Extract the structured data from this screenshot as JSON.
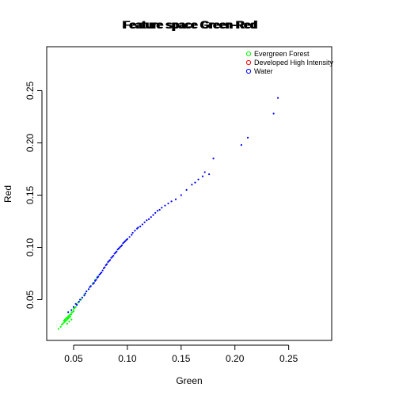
{
  "chart_data": {
    "type": "scatter",
    "title_overlaps": [
      "Feature space Green-Red",
      "Feature space Green-Red",
      "Feature space Green-Red"
    ],
    "xlabel": "Green",
    "ylabel": "Red",
    "xlim": [
      0.025,
      0.29
    ],
    "ylim": [
      0.011,
      0.292
    ],
    "x_ticks": [
      0.05,
      0.1,
      0.15,
      0.2,
      0.25
    ],
    "x_tick_labels": [
      "0.05",
      "0.10",
      "0.15",
      "0.20",
      "0.25"
    ],
    "y_ticks": [
      0.05,
      0.1,
      0.15,
      0.2,
      0.25
    ],
    "y_tick_labels": [
      "0.05",
      "0.10",
      "0.15",
      "0.20",
      "0.25"
    ],
    "legend": {
      "position": "top-right",
      "entries": [
        {
          "label": "Evergreen Forest",
          "color": "#00ff00"
        },
        {
          "label": "Developed High Intensity",
          "color": "#ff0000"
        },
        {
          "label": "Water",
          "color": "#0000ff"
        }
      ]
    },
    "series": [
      {
        "name": "Evergreen Forest",
        "color": "#00ff00",
        "x": [
          0.036,
          0.038,
          0.039,
          0.04,
          0.041,
          0.041,
          0.042,
          0.042,
          0.043,
          0.043,
          0.044,
          0.044,
          0.045,
          0.045,
          0.046,
          0.046,
          0.047,
          0.047,
          0.048,
          0.048,
          0.049,
          0.05,
          0.05,
          0.051,
          0.052,
          0.053,
          0.054,
          0.055,
          0.057,
          0.058,
          0.06,
          0.062,
          0.064,
          0.066,
          0.068,
          0.07,
          0.072,
          0.044,
          0.046,
          0.048
        ],
        "y": [
          0.022,
          0.024,
          0.026,
          0.027,
          0.028,
          0.03,
          0.029,
          0.031,
          0.03,
          0.032,
          0.031,
          0.033,
          0.032,
          0.034,
          0.033,
          0.035,
          0.034,
          0.036,
          0.036,
          0.038,
          0.038,
          0.039,
          0.041,
          0.042,
          0.043,
          0.045,
          0.047,
          0.048,
          0.05,
          0.052,
          0.055,
          0.058,
          0.06,
          0.063,
          0.066,
          0.069,
          0.072,
          0.027,
          0.029,
          0.031
        ]
      },
      {
        "name": "Water",
        "color": "#0000ff",
        "x": [
          0.045,
          0.048,
          0.05,
          0.052,
          0.053,
          0.055,
          0.056,
          0.058,
          0.06,
          0.061,
          0.062,
          0.064,
          0.065,
          0.066,
          0.068,
          0.069,
          0.07,
          0.071,
          0.072,
          0.073,
          0.074,
          0.075,
          0.076,
          0.077,
          0.078,
          0.079,
          0.08,
          0.081,
          0.082,
          0.083,
          0.084,
          0.085,
          0.086,
          0.087,
          0.088,
          0.089,
          0.09,
          0.091,
          0.092,
          0.093,
          0.094,
          0.095,
          0.096,
          0.097,
          0.098,
          0.099,
          0.1,
          0.102,
          0.104,
          0.105,
          0.107,
          0.109,
          0.11,
          0.112,
          0.114,
          0.116,
          0.118,
          0.12,
          0.122,
          0.124,
          0.126,
          0.128,
          0.13,
          0.132,
          0.135,
          0.138,
          0.141,
          0.145,
          0.15,
          0.155,
          0.16,
          0.163,
          0.166,
          0.17,
          0.172,
          0.176,
          0.18,
          0.206,
          0.212,
          0.236,
          0.24
        ],
        "y": [
          0.038,
          0.04,
          0.043,
          0.046,
          0.045,
          0.048,
          0.05,
          0.052,
          0.054,
          0.056,
          0.058,
          0.06,
          0.062,
          0.063,
          0.065,
          0.066,
          0.068,
          0.069,
          0.071,
          0.072,
          0.074,
          0.075,
          0.076,
          0.078,
          0.08,
          0.081,
          0.083,
          0.084,
          0.086,
          0.087,
          0.088,
          0.09,
          0.091,
          0.092,
          0.094,
          0.095,
          0.096,
          0.098,
          0.099,
          0.1,
          0.101,
          0.102,
          0.104,
          0.105,
          0.106,
          0.107,
          0.108,
          0.11,
          0.112,
          0.114,
          0.116,
          0.118,
          0.119,
          0.12,
          0.122,
          0.124,
          0.126,
          0.127,
          0.129,
          0.131,
          0.133,
          0.135,
          0.136,
          0.138,
          0.14,
          0.142,
          0.144,
          0.146,
          0.15,
          0.155,
          0.16,
          0.162,
          0.165,
          0.168,
          0.172,
          0.17,
          0.185,
          0.198,
          0.205,
          0.228,
          0.243
        ]
      },
      {
        "name": "Developed High Intensity",
        "color": "#ff0000",
        "x": [],
        "y": []
      }
    ]
  }
}
